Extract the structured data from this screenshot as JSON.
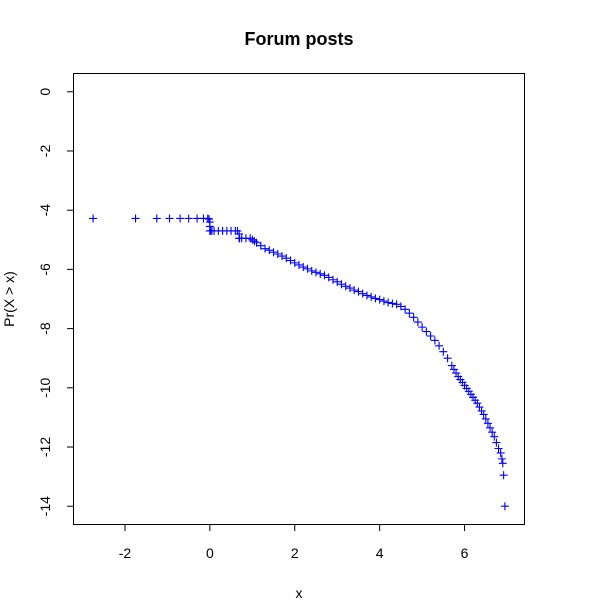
{
  "chart_data": {
    "type": "scatter",
    "title": "Forum posts",
    "xlabel": "x",
    "ylabel": "Pr(X > x)",
    "xlim": [
      -3.2,
      7.4
    ],
    "ylim": [
      -14.6,
      0.6
    ],
    "xticks": [
      -2,
      0,
      2,
      4,
      6
    ],
    "yticks": [
      0,
      -2,
      -4,
      -6,
      -8,
      -10,
      -12,
      -14
    ],
    "xtick_labels": [
      "-2",
      "0",
      "2",
      "4",
      "6"
    ],
    "ytick_labels": [
      "0",
      "-2",
      "-4",
      "-6",
      "-8",
      "-10",
      "-12",
      "-14"
    ],
    "grid": false,
    "marker": "+",
    "color": "#0000ff",
    "series": [
      {
        "x": [
          -2.75,
          -1.75,
          -1.25,
          -0.95,
          -0.7,
          -0.5,
          -0.3,
          -0.15,
          -0.05,
          -0.02,
          0.0,
          0.0,
          0.0,
          0.02,
          0.05,
          0.1,
          0.2,
          0.3,
          0.4,
          0.5,
          0.6,
          0.65,
          0.69,
          0.69,
          0.7,
          0.75,
          0.85,
          0.95,
          1.0,
          1.05,
          1.1,
          1.2,
          1.3,
          1.4,
          1.5,
          1.6,
          1.7,
          1.8,
          1.9,
          2.0,
          2.1,
          2.2,
          2.3,
          2.4,
          2.5,
          2.6,
          2.7,
          2.8,
          2.9,
          3.0,
          3.1,
          3.2,
          3.3,
          3.4,
          3.5,
          3.6,
          3.7,
          3.8,
          3.9,
          4.0,
          4.1,
          4.2,
          4.3,
          4.4,
          4.5,
          4.6,
          4.7,
          4.8,
          4.9,
          5.0,
          5.1,
          5.2,
          5.3,
          5.4,
          5.5,
          5.6,
          5.7,
          5.75,
          5.8,
          5.85,
          5.9,
          5.95,
          6.0,
          6.05,
          6.1,
          6.15,
          6.2,
          6.25,
          6.3,
          6.35,
          6.4,
          6.45,
          6.5,
          6.55,
          6.6,
          6.65,
          6.7,
          6.75,
          6.8,
          6.85,
          6.88,
          6.9,
          6.92,
          6.95
        ],
        "y": [
          -4.28,
          -4.28,
          -4.28,
          -4.28,
          -4.28,
          -4.28,
          -4.28,
          -4.28,
          -4.28,
          -4.3,
          -4.4,
          -4.55,
          -4.7,
          -4.7,
          -4.7,
          -4.7,
          -4.7,
          -4.7,
          -4.7,
          -4.7,
          -4.7,
          -4.7,
          -4.8,
          -4.95,
          -4.95,
          -4.95,
          -4.95,
          -4.95,
          -5.0,
          -5.05,
          -5.1,
          -5.2,
          -5.3,
          -5.35,
          -5.42,
          -5.48,
          -5.55,
          -5.62,
          -5.7,
          -5.78,
          -5.85,
          -5.92,
          -5.98,
          -6.05,
          -6.1,
          -6.15,
          -6.2,
          -6.27,
          -6.35,
          -6.42,
          -6.5,
          -6.57,
          -6.63,
          -6.7,
          -6.75,
          -6.82,
          -6.88,
          -6.93,
          -6.98,
          -7.02,
          -7.07,
          -7.12,
          -7.15,
          -7.18,
          -7.25,
          -7.35,
          -7.48,
          -7.62,
          -7.78,
          -7.95,
          -8.1,
          -8.25,
          -8.4,
          -8.58,
          -8.78,
          -9.0,
          -9.25,
          -9.38,
          -9.5,
          -9.62,
          -9.72,
          -9.82,
          -9.92,
          -10.02,
          -10.12,
          -10.22,
          -10.32,
          -10.42,
          -10.52,
          -10.65,
          -10.78,
          -10.9,
          -11.05,
          -11.2,
          -11.35,
          -11.5,
          -11.65,
          -11.85,
          -12.05,
          -12.2,
          -12.4,
          -12.55,
          -12.95,
          -14.0
        ]
      }
    ]
  }
}
